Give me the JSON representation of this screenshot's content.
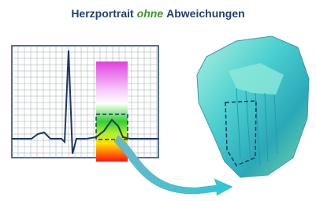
{
  "title": {
    "before": "Herzportrait",
    "emphasis": "ohne",
    "after": "Abweichungen"
  }
}
